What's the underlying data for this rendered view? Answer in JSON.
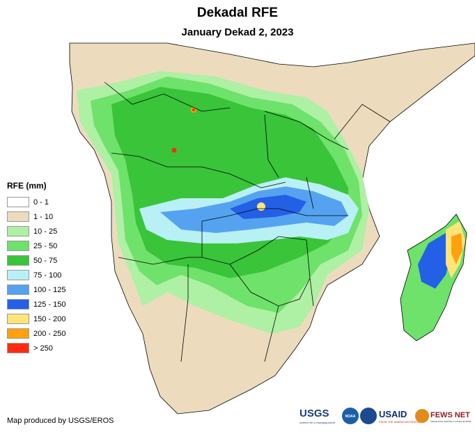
{
  "title": "Dekadal RFE",
  "subtitle": "January Dekad 2, 2023",
  "legend": {
    "title": "RFE (mm)",
    "items": [
      {
        "label": "0 - 1",
        "color": "#ffffff"
      },
      {
        "label": "1 - 10",
        "color": "#ecdcbd"
      },
      {
        "label": "10 - 25",
        "color": "#aef0a4"
      },
      {
        "label": "25 - 50",
        "color": "#6ee26a"
      },
      {
        "label": "50 - 75",
        "color": "#39c43a"
      },
      {
        "label": "75 - 100",
        "color": "#b9f0f6"
      },
      {
        "label": "100 - 125",
        "color": "#55a3f0"
      },
      {
        "label": "125 - 150",
        "color": "#2360e6"
      },
      {
        "label": "150 - 200",
        "color": "#ffe47a"
      },
      {
        "label": "200 - 250",
        "color": "#ffa10f"
      },
      {
        "label": "> 250",
        "color": "#ff2c12"
      }
    ]
  },
  "credit": "Map produced by USGS/EROS",
  "logos": {
    "usgs": "USGS",
    "usgs_tagline": "science for a changing world",
    "noaa": "NOAA",
    "usaid": "USAID",
    "usaid_tagline": "FROM THE AMERICAN PEOPLE",
    "fewsnet": "FEWS NET",
    "fewsnet_tagline": "FAMINE EARLY WARNING SYSTEMS NETWORK"
  }
}
